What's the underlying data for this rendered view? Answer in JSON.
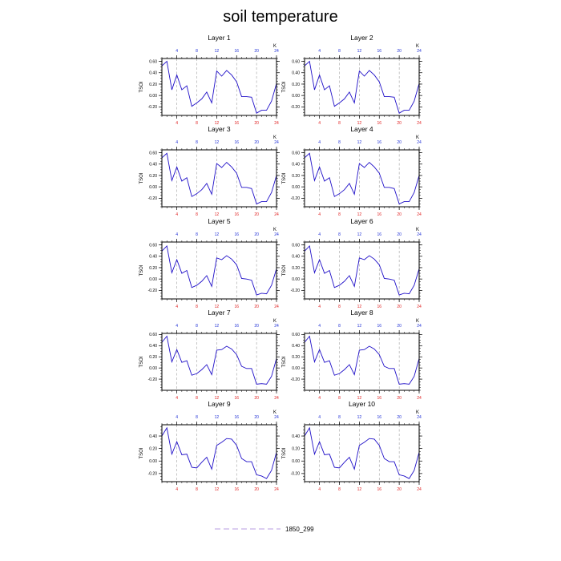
{
  "title": "soil temperature",
  "legend": {
    "label": "1850_299",
    "color": "#b79be0"
  },
  "colors": {
    "line": "#2010c8",
    "top_ticks": "#1f2fd6",
    "bottom_ticks": "#e02020",
    "grid": "#a0a0a0"
  },
  "chart_data": {
    "type": "line",
    "ylabel": "TSOI",
    "x_axis_label": "K",
    "xlim": [
      1,
      24
    ],
    "x_ticks": [
      4,
      8,
      12,
      16,
      20,
      24
    ],
    "x_gridlines": [
      4,
      8,
      12,
      16,
      20
    ],
    "panels": [
      {
        "title": "Layer 1",
        "ylim": [
          -0.35,
          0.65
        ],
        "yticks": [
          "-0.20",
          "0.00",
          "0.20",
          "0.40",
          "0.60"
        ],
        "x": [
          1,
          2,
          3,
          4,
          5,
          6,
          7,
          8,
          9,
          10,
          11,
          12,
          13,
          14,
          15,
          16,
          17,
          18,
          19,
          20,
          21,
          22,
          23,
          24
        ],
        "y": [
          0.52,
          0.6,
          0.1,
          0.36,
          0.1,
          0.17,
          -0.19,
          -0.13,
          -0.06,
          0.06,
          -0.13,
          0.43,
          0.34,
          0.44,
          0.36,
          0.24,
          -0.02,
          -0.02,
          -0.03,
          -0.31,
          -0.26,
          -0.26,
          -0.1,
          0.21
        ]
      },
      {
        "title": "Layer 2",
        "ylim": [
          -0.35,
          0.65
        ],
        "yticks": [
          "-0.20",
          "0.00",
          "0.20",
          "0.40",
          "0.60"
        ],
        "x": [
          1,
          2,
          3,
          4,
          5,
          6,
          7,
          8,
          9,
          10,
          11,
          12,
          13,
          14,
          15,
          16,
          17,
          18,
          19,
          20,
          21,
          22,
          23,
          24
        ],
        "y": [
          0.52,
          0.6,
          0.1,
          0.36,
          0.1,
          0.17,
          -0.19,
          -0.13,
          -0.06,
          0.06,
          -0.13,
          0.43,
          0.34,
          0.44,
          0.36,
          0.24,
          -0.02,
          -0.02,
          -0.03,
          -0.31,
          -0.26,
          -0.26,
          -0.1,
          0.21
        ]
      },
      {
        "title": "Layer 3",
        "ylim": [
          -0.35,
          0.65
        ],
        "yticks": [
          "-0.20",
          "0.00",
          "0.20",
          "0.40",
          "0.60"
        ],
        "x": [
          1,
          2,
          3,
          4,
          5,
          6,
          7,
          8,
          9,
          10,
          11,
          12,
          13,
          14,
          15,
          16,
          17,
          18,
          19,
          20,
          21,
          22,
          23,
          24
        ],
        "y": [
          0.51,
          0.59,
          0.11,
          0.35,
          0.1,
          0.16,
          -0.17,
          -0.12,
          -0.05,
          0.06,
          -0.13,
          0.41,
          0.34,
          0.43,
          0.35,
          0.24,
          -0.01,
          -0.01,
          -0.03,
          -0.3,
          -0.26,
          -0.26,
          -0.1,
          0.2
        ]
      },
      {
        "title": "Layer 4",
        "ylim": [
          -0.35,
          0.65
        ],
        "yticks": [
          "-0.20",
          "0.00",
          "0.20",
          "0.40",
          "0.60"
        ],
        "x": [
          1,
          2,
          3,
          4,
          5,
          6,
          7,
          8,
          9,
          10,
          11,
          12,
          13,
          14,
          15,
          16,
          17,
          18,
          19,
          20,
          21,
          22,
          23,
          24
        ],
        "y": [
          0.51,
          0.59,
          0.11,
          0.35,
          0.1,
          0.16,
          -0.17,
          -0.12,
          -0.05,
          0.06,
          -0.13,
          0.41,
          0.34,
          0.43,
          0.35,
          0.24,
          -0.01,
          -0.01,
          -0.03,
          -0.3,
          -0.26,
          -0.26,
          -0.1,
          0.2
        ]
      },
      {
        "title": "Layer 5",
        "ylim": [
          -0.35,
          0.65
        ],
        "yticks": [
          "-0.20",
          "0.00",
          "0.20",
          "0.40",
          "0.60"
        ],
        "x": [
          1,
          2,
          3,
          4,
          5,
          6,
          7,
          8,
          9,
          10,
          11,
          12,
          13,
          14,
          15,
          16,
          17,
          18,
          19,
          20,
          21,
          22,
          23,
          24
        ],
        "y": [
          0.49,
          0.58,
          0.11,
          0.34,
          0.1,
          0.15,
          -0.15,
          -0.11,
          -0.04,
          0.06,
          -0.13,
          0.37,
          0.34,
          0.41,
          0.35,
          0.25,
          0.01,
          0.0,
          -0.02,
          -0.28,
          -0.25,
          -0.26,
          -0.11,
          0.18
        ]
      },
      {
        "title": "Layer 6",
        "ylim": [
          -0.35,
          0.65
        ],
        "yticks": [
          "-0.20",
          "0.00",
          "0.20",
          "0.40",
          "0.60"
        ],
        "x": [
          1,
          2,
          3,
          4,
          5,
          6,
          7,
          8,
          9,
          10,
          11,
          12,
          13,
          14,
          15,
          16,
          17,
          18,
          19,
          20,
          21,
          22,
          23,
          24
        ],
        "y": [
          0.49,
          0.58,
          0.11,
          0.34,
          0.1,
          0.15,
          -0.15,
          -0.11,
          -0.04,
          0.06,
          -0.13,
          0.37,
          0.34,
          0.41,
          0.35,
          0.25,
          0.01,
          0.0,
          -0.02,
          -0.28,
          -0.25,
          -0.26,
          -0.11,
          0.18
        ]
      },
      {
        "title": "Layer 7",
        "ylim": [
          -0.4,
          0.62
        ],
        "yticks": [
          "-0.20",
          "0.00",
          "0.20",
          "0.40",
          "0.60"
        ],
        "x": [
          1,
          2,
          3,
          4,
          5,
          6,
          7,
          8,
          9,
          10,
          11,
          12,
          13,
          14,
          15,
          16,
          17,
          18,
          19,
          20,
          21,
          22,
          23,
          24
        ],
        "y": [
          0.46,
          0.57,
          0.11,
          0.33,
          0.1,
          0.13,
          -0.13,
          -0.1,
          -0.03,
          0.06,
          -0.12,
          0.32,
          0.33,
          0.39,
          0.34,
          0.24,
          0.03,
          -0.01,
          -0.01,
          -0.29,
          -0.28,
          -0.29,
          -0.15,
          0.17
        ]
      },
      {
        "title": "Layer 8",
        "ylim": [
          -0.4,
          0.62
        ],
        "yticks": [
          "-0.20",
          "0.00",
          "0.20",
          "0.40",
          "0.60"
        ],
        "x": [
          1,
          2,
          3,
          4,
          5,
          6,
          7,
          8,
          9,
          10,
          11,
          12,
          13,
          14,
          15,
          16,
          17,
          18,
          19,
          20,
          21,
          22,
          23,
          24
        ],
        "y": [
          0.46,
          0.57,
          0.11,
          0.33,
          0.1,
          0.13,
          -0.13,
          -0.1,
          -0.03,
          0.06,
          -0.12,
          0.32,
          0.33,
          0.39,
          0.34,
          0.24,
          0.03,
          -0.01,
          -0.01,
          -0.29,
          -0.28,
          -0.29,
          -0.15,
          0.17
        ]
      },
      {
        "title": "Layer 9",
        "ylim": [
          -0.33,
          0.58
        ],
        "yticks": [
          "-0.20",
          "0.00",
          "0.20",
          "0.40"
        ],
        "x": [
          1,
          2,
          3,
          4,
          5,
          6,
          7,
          8,
          9,
          10,
          11,
          12,
          13,
          14,
          15,
          16,
          17,
          18,
          19,
          20,
          21,
          22,
          23,
          24
        ],
        "y": [
          0.4,
          0.53,
          0.11,
          0.31,
          0.1,
          0.11,
          -0.1,
          -0.11,
          -0.02,
          0.06,
          -0.13,
          0.25,
          0.3,
          0.36,
          0.35,
          0.25,
          0.04,
          -0.01,
          -0.01,
          -0.22,
          -0.24,
          -0.28,
          -0.15,
          0.14
        ]
      },
      {
        "title": "Layer 10",
        "ylim": [
          -0.33,
          0.58
        ],
        "yticks": [
          "-0.20",
          "0.00",
          "0.20",
          "0.40"
        ],
        "x": [
          1,
          2,
          3,
          4,
          5,
          6,
          7,
          8,
          9,
          10,
          11,
          12,
          13,
          14,
          15,
          16,
          17,
          18,
          19,
          20,
          21,
          22,
          23,
          24
        ],
        "y": [
          0.4,
          0.53,
          0.11,
          0.31,
          0.1,
          0.11,
          -0.1,
          -0.11,
          -0.02,
          0.06,
          -0.13,
          0.25,
          0.3,
          0.36,
          0.35,
          0.25,
          0.04,
          -0.01,
          -0.01,
          -0.22,
          -0.24,
          -0.28,
          -0.15,
          0.14
        ]
      }
    ]
  }
}
